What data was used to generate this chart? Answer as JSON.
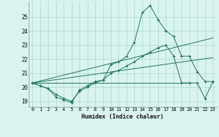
{
  "x": [
    0,
    1,
    2,
    3,
    4,
    5,
    6,
    7,
    8,
    9,
    10,
    11,
    12,
    13,
    14,
    15,
    16,
    17,
    18,
    19,
    20,
    21,
    22,
    23
  ],
  "line1": [
    20.3,
    20.1,
    19.9,
    19.3,
    19.1,
    18.9,
    19.8,
    20.1,
    20.4,
    20.5,
    21.6,
    21.8,
    22.2,
    23.2,
    25.3,
    25.8,
    24.8,
    24.0,
    23.6,
    22.2,
    22.2,
    21.1,
    20.4,
    20.4
  ],
  "line2": [
    20.3,
    20.1,
    19.9,
    19.5,
    19.2,
    19.0,
    19.7,
    20.0,
    20.3,
    20.5,
    21.0,
    21.2,
    21.5,
    21.8,
    22.2,
    22.5,
    22.8,
    23.0,
    22.2,
    20.3,
    20.3,
    20.3,
    19.2,
    20.4
  ],
  "line3_x": [
    0,
    23
  ],
  "line3_y": [
    20.3,
    23.5
  ],
  "line4_x": [
    0,
    23
  ],
  "line4_y": [
    20.3,
    22.1
  ],
  "line5_x": [
    0,
    20
  ],
  "line5_y": [
    20.3,
    20.3
  ],
  "background_color": "#d9f3ee",
  "grid_color": "#a8d5cc",
  "line_color": "#1b6b5a",
  "xlim": [
    -0.5,
    23.5
  ],
  "ylim": [
    18.6,
    26.1
  ],
  "yticks": [
    19,
    20,
    21,
    22,
    23,
    24,
    25
  ],
  "xticks": [
    0,
    1,
    2,
    3,
    4,
    5,
    6,
    7,
    8,
    9,
    10,
    11,
    12,
    13,
    14,
    15,
    16,
    17,
    18,
    19,
    20,
    21,
    22,
    23
  ],
  "xlabel": "Humidex (Indice chaleur)"
}
